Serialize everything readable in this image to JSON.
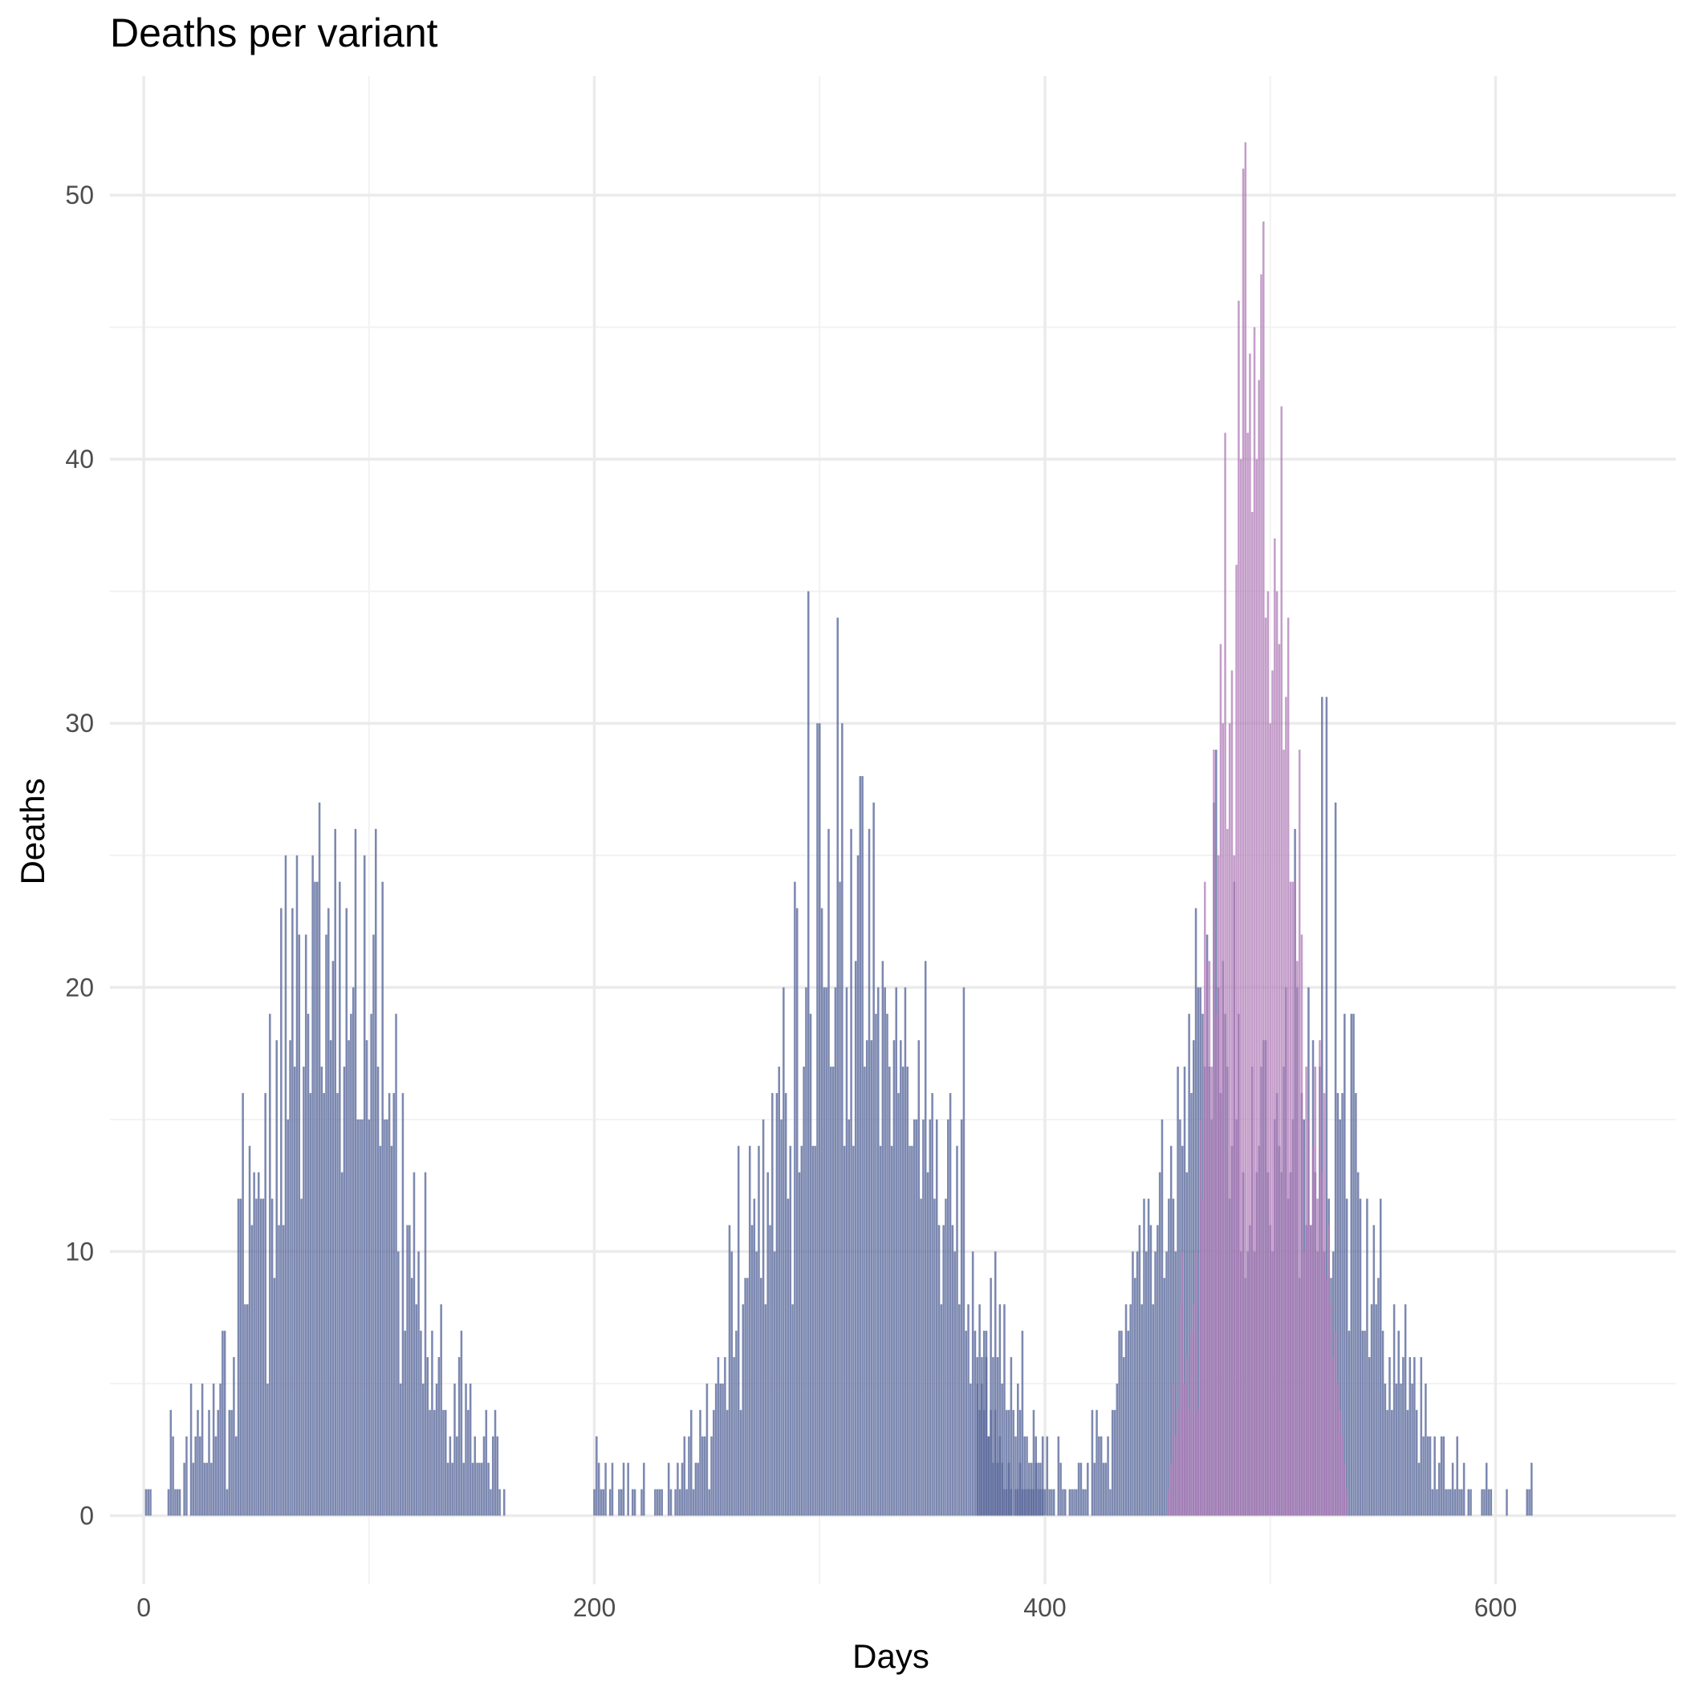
{
  "chart_data": {
    "type": "bar",
    "title": "Deaths per variant",
    "xlabel": "Days",
    "ylabel": "Deaths",
    "xlim": [
      -15,
      680
    ],
    "ylim": [
      -2.6,
      54.5
    ],
    "x_ticks": [
      0,
      200,
      400,
      600
    ],
    "y_ticks": [
      0,
      10,
      20,
      30,
      40,
      50
    ],
    "grid": true,
    "legend": "none",
    "series": [
      {
        "color": "#5b6a9c",
        "x_start": 1,
        "values": [
          1,
          1,
          1,
          0,
          0,
          0,
          0,
          0,
          0,
          0,
          1,
          4,
          3,
          1,
          1,
          1,
          0,
          2,
          3,
          0,
          5,
          2,
          3,
          4,
          3,
          5,
          2,
          2,
          4,
          2,
          5,
          3,
          4,
          5,
          7,
          7,
          1,
          4,
          4,
          6,
          3,
          12,
          12,
          16,
          8,
          8,
          14,
          11,
          13,
          12,
          13,
          12,
          12,
          16,
          5,
          19,
          12,
          9,
          18,
          11,
          23,
          11,
          25,
          15,
          18,
          23,
          17,
          25,
          22,
          12,
          17,
          22,
          19,
          16,
          25,
          24,
          24,
          27,
          17,
          16,
          22,
          23,
          18,
          21,
          26,
          16,
          24,
          13,
          17,
          23,
          18,
          19,
          20,
          26,
          15,
          15,
          15,
          25,
          18,
          15,
          19,
          22,
          26,
          17,
          14,
          24,
          15,
          15,
          16,
          14,
          16,
          19,
          10,
          5,
          16,
          7,
          11,
          11,
          9,
          13,
          8,
          10,
          7,
          5,
          13,
          6,
          4,
          7,
          4,
          5,
          6,
          8,
          4,
          4,
          2,
          3,
          2,
          5,
          3,
          6,
          7,
          2,
          5,
          4,
          5,
          2,
          3,
          2,
          2,
          2,
          3,
          4,
          2,
          1,
          3,
          4,
          3,
          1,
          0,
          1,
          0,
          0,
          0,
          0,
          0,
          0,
          0,
          0,
          0,
          0,
          0,
          0,
          0,
          0,
          0,
          0,
          0,
          0,
          0,
          0,
          0,
          0,
          0,
          0,
          0,
          0,
          0,
          0,
          0,
          0,
          0,
          0,
          0,
          0,
          0,
          0,
          0,
          0,
          0,
          1,
          3,
          2,
          1,
          1,
          2,
          0,
          1,
          2,
          0,
          0,
          1,
          1,
          2,
          0,
          2,
          0,
          1,
          1,
          0,
          0,
          1,
          2,
          0,
          0,
          0,
          0,
          1,
          1,
          1,
          1,
          0,
          0,
          2,
          1,
          0,
          1,
          2,
          1,
          2,
          3,
          1,
          3,
          4,
          1,
          2,
          2,
          4,
          3,
          3,
          5,
          1,
          3,
          4,
          5,
          6,
          5,
          5,
          6,
          4,
          11,
          10,
          6,
          7,
          14,
          4,
          8,
          9,
          9,
          14,
          11,
          12,
          10,
          14,
          9,
          15,
          8,
          13,
          11,
          16,
          10,
          16,
          17,
          15,
          20,
          16,
          12,
          14,
          8,
          24,
          23,
          13,
          14,
          17,
          20,
          35,
          19,
          14,
          14,
          30,
          30,
          23,
          20,
          20,
          26,
          17,
          17,
          20,
          34,
          24,
          30,
          14,
          20,
          15,
          26,
          14,
          21,
          25,
          28,
          28,
          17,
          18,
          26,
          18,
          27,
          19,
          20,
          14,
          21,
          20,
          19,
          17,
          14,
          18,
          20,
          16,
          18,
          17,
          20,
          17,
          14,
          14,
          15,
          15,
          18,
          12,
          15,
          21,
          13,
          15,
          16,
          12,
          15,
          11,
          8,
          11,
          12,
          15,
          16,
          11,
          10,
          14,
          8,
          15,
          20,
          7,
          8,
          5,
          10,
          7,
          5,
          4,
          6,
          7,
          6,
          3,
          9,
          6,
          10,
          6,
          8,
          5,
          8,
          4,
          4,
          6,
          4,
          3,
          5,
          4,
          7,
          3,
          1,
          2,
          1,
          1,
          3,
          2,
          2,
          1,
          0,
          0,
          0,
          0,
          0,
          0,
          0,
          0,
          0,
          0,
          0,
          0,
          0,
          0,
          0,
          0,
          0,
          0,
          0,
          0,
          0,
          0,
          0,
          0,
          0,
          0,
          0,
          0,
          0,
          0,
          0,
          0,
          0,
          0,
          0,
          0,
          0,
          0,
          0,
          0,
          0,
          0,
          0,
          0,
          0,
          0,
          0,
          0,
          0,
          0,
          0,
          0,
          0,
          0,
          0,
          0,
          0,
          0,
          0,
          0,
          0,
          0,
          0,
          0,
          0,
          0,
          0,
          0,
          0,
          0,
          0,
          0,
          0,
          0,
          0,
          0,
          0,
          0,
          0,
          0,
          0,
          0,
          0,
          0,
          0,
          0,
          0,
          0,
          0,
          0,
          0,
          0,
          0,
          0,
          0,
          0,
          0,
          0,
          0,
          0,
          0,
          0,
          0,
          0,
          0,
          0,
          0,
          0,
          0,
          0,
          0,
          0,
          0,
          0,
          0,
          0,
          0,
          0,
          0,
          0,
          0,
          0,
          0,
          0,
          0,
          0,
          0,
          0,
          0,
          0,
          0,
          0,
          0,
          0,
          0,
          0,
          0,
          0,
          0,
          0,
          0,
          0,
          0,
          0,
          0,
          0,
          0,
          0,
          0,
          0,
          0,
          0,
          0,
          0,
          0,
          0,
          0,
          0,
          0,
          0,
          0,
          0,
          0,
          0,
          0,
          0,
          0,
          0,
          0,
          0,
          0,
          0,
          0,
          0,
          0,
          0,
          0,
          0,
          0,
          0,
          0,
          0,
          0,
          0,
          0,
          0,
          0,
          0,
          0,
          0,
          0,
          0,
          0,
          0,
          0,
          0,
          0,
          0,
          0,
          0,
          0,
          0,
          0,
          0,
          0,
          0,
          0,
          0,
          0,
          0,
          0,
          0,
          0,
          0,
          0,
          0,
          0,
          0,
          0,
          0,
          0,
          0,
          0,
          0,
          0,
          0,
          0,
          0,
          0,
          0,
          0,
          0,
          0,
          0,
          0,
          0,
          0,
          0,
          0,
          0,
          0,
          0,
          0,
          0,
          0,
          0,
          0,
          0,
          0,
          0,
          0,
          0,
          0,
          0,
          0,
          0,
          0,
          0,
          0,
          0,
          0,
          0,
          0,
          0,
          0,
          0,
          0,
          0,
          0,
          0,
          0,
          0,
          0,
          0,
          0,
          0,
          0,
          0,
          0,
          0,
          0,
          0,
          0,
          0,
          0,
          0,
          0,
          0,
          0,
          0,
          0,
          0,
          0,
          0,
          0,
          0,
          0,
          0,
          0,
          0,
          0,
          0,
          0,
          0,
          0,
          0,
          0,
          0,
          0,
          0,
          0,
          0,
          0,
          0,
          0,
          0,
          0,
          0,
          0,
          0,
          0,
          0,
          0,
          0,
          0,
          0,
          0,
          0,
          0,
          0,
          0,
          0,
          0,
          0,
          0,
          0,
          0,
          0,
          0,
          0,
          0,
          0,
          0,
          0,
          0,
          0,
          0,
          0,
          0,
          0,
          0,
          0,
          0,
          0,
          0,
          0,
          0,
          0,
          0
        ]
      },
      {
        "color": "#5b6a9c",
        "x_start": 370,
        "values": [
          6,
          8,
          5,
          4,
          7,
          3,
          4,
          2,
          4,
          2,
          3,
          2,
          1,
          1,
          2,
          1,
          0,
          1,
          1,
          2,
          1,
          1,
          3,
          1,
          2,
          4,
          2,
          1,
          1,
          3,
          1,
          3,
          1,
          1,
          1,
          0,
          3,
          2,
          1,
          1,
          0,
          1,
          1,
          1,
          1,
          2,
          2,
          1,
          1,
          2,
          0,
          4,
          2,
          4,
          3,
          3,
          2,
          2,
          3,
          1,
          4,
          4,
          5,
          7,
          7,
          6,
          8,
          7,
          8,
          10,
          9,
          10,
          11,
          8,
          12,
          10,
          12,
          11,
          8,
          10,
          11,
          13,
          15,
          9,
          10,
          12,
          14,
          12,
          10,
          17,
          15,
          14,
          17,
          13,
          19,
          16,
          18,
          23,
          20,
          20,
          19,
          17,
          22,
          17,
          15,
          27,
          29,
          20,
          16,
          21,
          19,
          17,
          12,
          14,
          24,
          15,
          19,
          10,
          13,
          9,
          10,
          11,
          17,
          10,
          13,
          14,
          17,
          18,
          18,
          13,
          11,
          10,
          15,
          16,
          14,
          13,
          17,
          20,
          12,
          13,
          15,
          26,
          20,
          9,
          16,
          15,
          11,
          20,
          11,
          18,
          13,
          10,
          17,
          31,
          10,
          31,
          12,
          9,
          10,
          27,
          16,
          15,
          16,
          19,
          12,
          7,
          19,
          19,
          16,
          13,
          12,
          7,
          7,
          12,
          6,
          8,
          11,
          8,
          9,
          12,
          7,
          5,
          4,
          6,
          4,
          8,
          5,
          7,
          5,
          6,
          8,
          4,
          6,
          5,
          6,
          4,
          2,
          6,
          3,
          5,
          3,
          3,
          1,
          3,
          1,
          2,
          3,
          3,
          1,
          1,
          1,
          2,
          1,
          3,
          1,
          1,
          2,
          0,
          1,
          1,
          0,
          0,
          0,
          0,
          1,
          1,
          2,
          1,
          1,
          0,
          0,
          0,
          0,
          0,
          0,
          1,
          0,
          0,
          0,
          0,
          0,
          0,
          0,
          0,
          1,
          1,
          2
        ]
      },
      {
        "color": "#b07cb8",
        "x_start": 455,
        "values": [
          1,
          2,
          5,
          3,
          4,
          8,
          10,
          5,
          6,
          4,
          7,
          8,
          10,
          4,
          15,
          12,
          24,
          21,
          21,
          17,
          29,
          19,
          25,
          33,
          30,
          41,
          26,
          30,
          32,
          25,
          36,
          46,
          40,
          51,
          52,
          41,
          44,
          38,
          45,
          40,
          43,
          47,
          49,
          34,
          35,
          30,
          32,
          37,
          35,
          33,
          42,
          29,
          31,
          34,
          24,
          24,
          24,
          21,
          29,
          22,
          10,
          17,
          15,
          11,
          14,
          17,
          12,
          18,
          13,
          16,
          9,
          11,
          8,
          6,
          7,
          5,
          4,
          3,
          2,
          1
        ]
      }
    ]
  }
}
